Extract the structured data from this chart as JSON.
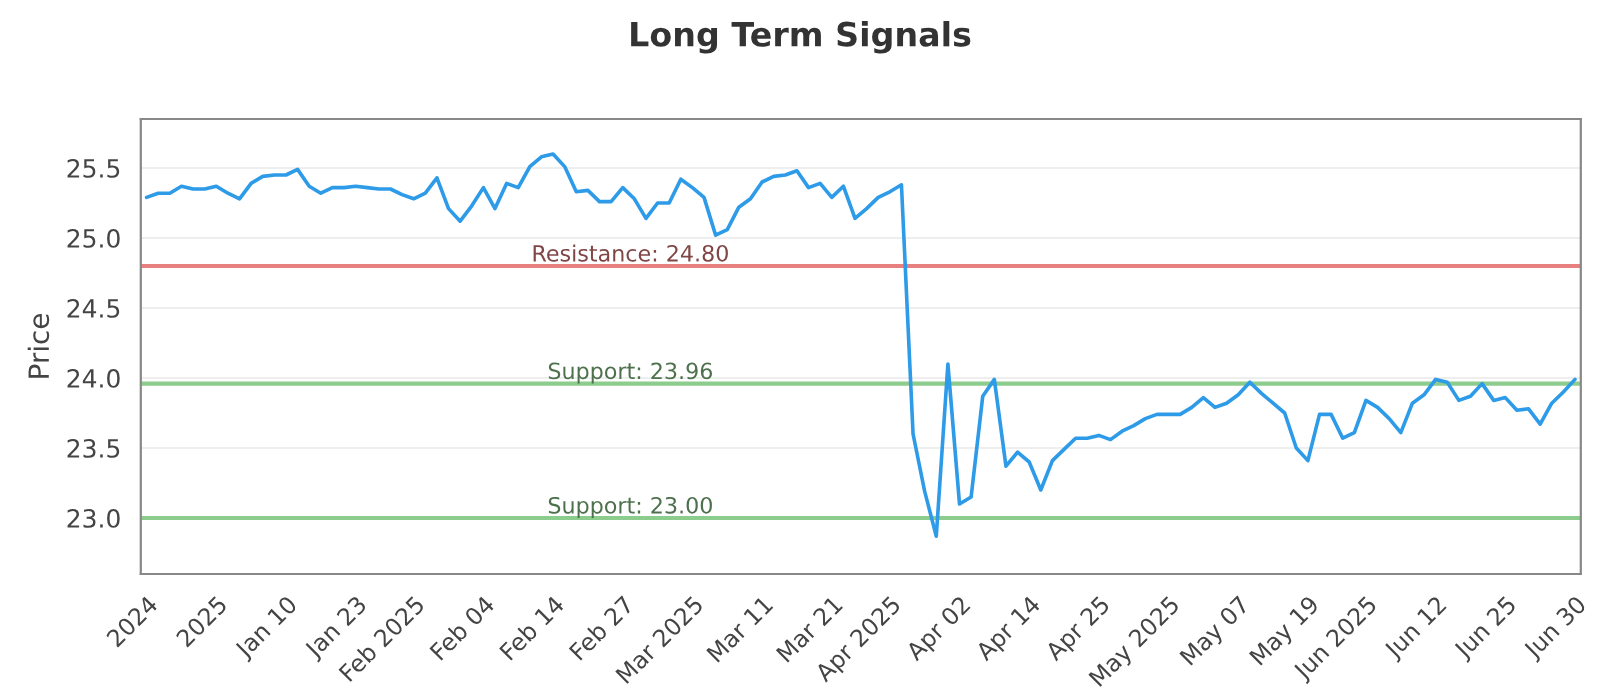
{
  "chart_data": {
    "type": "line",
    "title": "Long Term Signals",
    "ylabel": "Price",
    "categories": [
      "2024",
      null,
      null,
      null,
      null,
      null,
      "2025",
      null,
      null,
      null,
      null,
      null,
      "Jan 10",
      null,
      null,
      null,
      null,
      null,
      "Jan 23",
      null,
      null,
      null,
      null,
      "Feb 2025",
      null,
      null,
      null,
      null,
      null,
      "Feb 04",
      null,
      null,
      null,
      null,
      null,
      "Feb 14",
      null,
      null,
      null,
      null,
      null,
      "Feb 27",
      null,
      null,
      null,
      null,
      null,
      "Mar 2025",
      null,
      null,
      null,
      null,
      null,
      "Mar 11",
      null,
      null,
      null,
      null,
      null,
      "Mar 21",
      null,
      null,
      null,
      null,
      "Apr 2025",
      null,
      null,
      null,
      null,
      null,
      "Apr 02",
      null,
      null,
      null,
      null,
      null,
      "Apr 14",
      null,
      null,
      null,
      null,
      null,
      "Apr 25",
      null,
      null,
      null,
      null,
      null,
      "May 2025",
      null,
      null,
      null,
      null,
      null,
      "May 07",
      null,
      null,
      null,
      null,
      null,
      "May 19",
      null,
      null,
      null,
      null,
      "Jun 2025",
      null,
      null,
      null,
      null,
      null,
      "Jun 12",
      null,
      null,
      null,
      null,
      null,
      "Jun 25",
      null,
      null,
      null,
      null,
      null,
      "Jun 30"
    ],
    "series": [
      {
        "color": "#2e9be8",
        "values": [
          25.29,
          25.32,
          25.32,
          25.37,
          25.35,
          25.35,
          25.37,
          25.32,
          25.28,
          25.39,
          25.44,
          25.45,
          25.45,
          25.49,
          25.37,
          25.32,
          25.36,
          25.36,
          25.37,
          25.36,
          25.35,
          25.35,
          25.31,
          25.28,
          25.32,
          25.43,
          25.21,
          25.12,
          25.23,
          25.36,
          25.21,
          25.39,
          25.36,
          25.51,
          25.58,
          25.6,
          25.51,
          25.33,
          25.34,
          25.26,
          25.26,
          25.36,
          25.28,
          25.14,
          25.25,
          25.25,
          25.42,
          25.36,
          25.29,
          25.02,
          25.06,
          25.22,
          25.28,
          25.4,
          25.44,
          25.45,
          25.48,
          25.36,
          25.39,
          25.29,
          25.37,
          25.14,
          25.21,
          25.29,
          25.33,
          25.38,
          23.6,
          23.19,
          22.87,
          24.1,
          23.1,
          23.15,
          23.87,
          23.99,
          23.37,
          23.47,
          23.4,
          23.2,
          23.41,
          23.49,
          23.57,
          23.57,
          23.59,
          23.56,
          23.62,
          23.66,
          23.71,
          23.74,
          23.74,
          23.74,
          23.79,
          23.86,
          23.79,
          23.82,
          23.88,
          23.97,
          23.89,
          23.82,
          23.75,
          23.5,
          23.41,
          23.74,
          23.74,
          23.57,
          23.61,
          23.84,
          23.79,
          23.71,
          23.61,
          23.82,
          23.88,
          23.99,
          23.97,
          23.84,
          23.87,
          23.96,
          23.84,
          23.86,
          23.77,
          23.78,
          23.67,
          23.82,
          23.9,
          23.99
        ]
      }
    ],
    "ylim": [
      22.6,
      25.85
    ],
    "yticks": [
      {
        "value": 23,
        "label": "23.0"
      },
      {
        "value": 23.5,
        "label": "23.5"
      },
      {
        "value": 24,
        "label": "24.0"
      },
      {
        "value": 24.5,
        "label": "24.5"
      },
      {
        "value": 25,
        "label": "25.0"
      },
      {
        "value": 25.5,
        "label": "25.5"
      }
    ],
    "ref_lines": [
      {
        "axis": "y",
        "value": 24.8,
        "label": "Resistance: 24.80",
        "color": "#e88080"
      },
      {
        "axis": "y",
        "value": 23.96,
        "label": "Support: 23.96",
        "color": "#8ccc8c"
      },
      {
        "axis": "y",
        "value": 23.0,
        "label": "Support: 23.00",
        "color": "#8ccc8c"
      }
    ],
    "grid": "y",
    "marker": "none",
    "line_style": "solid",
    "legend": false
  }
}
